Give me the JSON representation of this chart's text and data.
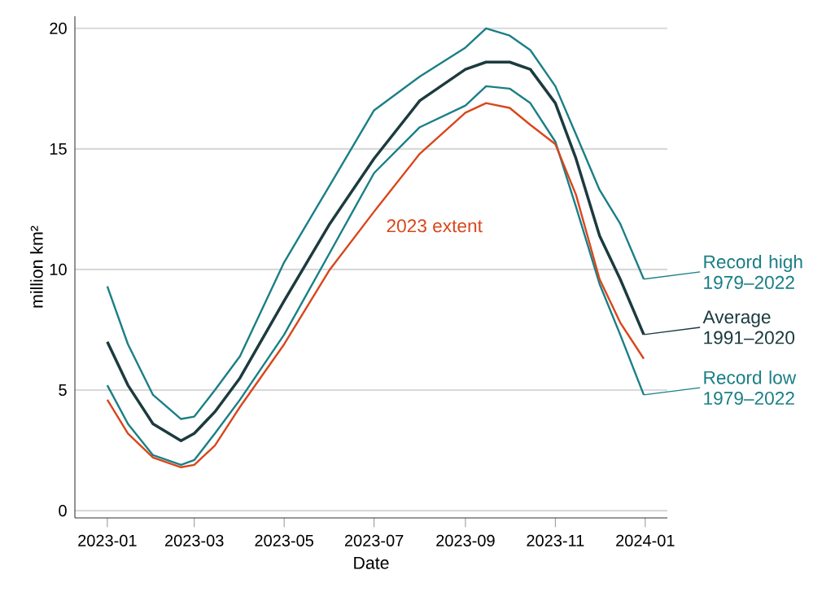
{
  "chart_data": {
    "type": "line",
    "xlabel": "Date",
    "ylabel": "million km²",
    "x": [
      "2023-01-01",
      "2023-01-15",
      "2023-02-01",
      "2023-02-20",
      "2023-03-01",
      "2023-03-15",
      "2023-04-01",
      "2023-05-01",
      "2023-06-01",
      "2023-07-01",
      "2023-08-01",
      "2023-09-01",
      "2023-09-15",
      "2023-10-01",
      "2023-10-15",
      "2023-11-01",
      "2023-11-15",
      "2023-12-01",
      "2023-12-15",
      "2023-12-31"
    ],
    "series": [
      {
        "name": "Record high 1979–2022",
        "color": "#1a7f86",
        "values": [
          9.3,
          6.9,
          4.8,
          3.8,
          3.9,
          5.0,
          6.4,
          10.3,
          13.5,
          16.6,
          18.0,
          19.2,
          20.0,
          19.7,
          19.1,
          17.6,
          15.6,
          13.3,
          11.9,
          9.6
        ]
      },
      {
        "name": "Record low 1979–2022",
        "color": "#1a7f86",
        "values": [
          5.2,
          3.6,
          2.3,
          1.9,
          2.1,
          3.2,
          4.6,
          7.3,
          10.7,
          14.0,
          15.9,
          16.8,
          17.6,
          17.5,
          16.9,
          15.3,
          12.6,
          9.4,
          7.3,
          4.8
        ]
      },
      {
        "name": "Average 1991–2020",
        "color": "#1c3b3f",
        "values": [
          7.0,
          5.2,
          3.6,
          2.9,
          3.2,
          4.1,
          5.5,
          8.7,
          11.9,
          14.6,
          17.0,
          18.3,
          18.6,
          18.6,
          18.3,
          16.9,
          14.6,
          11.4,
          9.6,
          7.3
        ]
      },
      {
        "name": "2023 extent",
        "color": "#d9461c",
        "values": [
          4.6,
          3.2,
          2.2,
          1.8,
          1.9,
          2.7,
          4.3,
          6.9,
          10.0,
          12.4,
          14.8,
          16.5,
          16.9,
          16.7,
          16.0,
          15.2,
          13.1,
          9.6,
          7.8,
          6.3
        ]
      }
    ],
    "xlim": [
      "2022-12-10",
      "2024-01-16"
    ],
    "xticks": [
      {
        "value": "2023-01-01",
        "label": "2023-01"
      },
      {
        "value": "2023-03-01",
        "label": "2023-03"
      },
      {
        "value": "2023-05-01",
        "label": "2023-05"
      },
      {
        "value": "2023-07-01",
        "label": "2023-07"
      },
      {
        "value": "2023-09-01",
        "label": "2023-09"
      },
      {
        "value": "2023-11-01",
        "label": "2023-11"
      },
      {
        "value": "2024-01-01",
        "label": "2024-01"
      }
    ],
    "ylim": [
      -0.3,
      20.5
    ],
    "yticks": [
      0,
      5,
      10,
      15,
      20
    ],
    "grid": "y",
    "legend": "right",
    "line_style": "solid"
  }
}
